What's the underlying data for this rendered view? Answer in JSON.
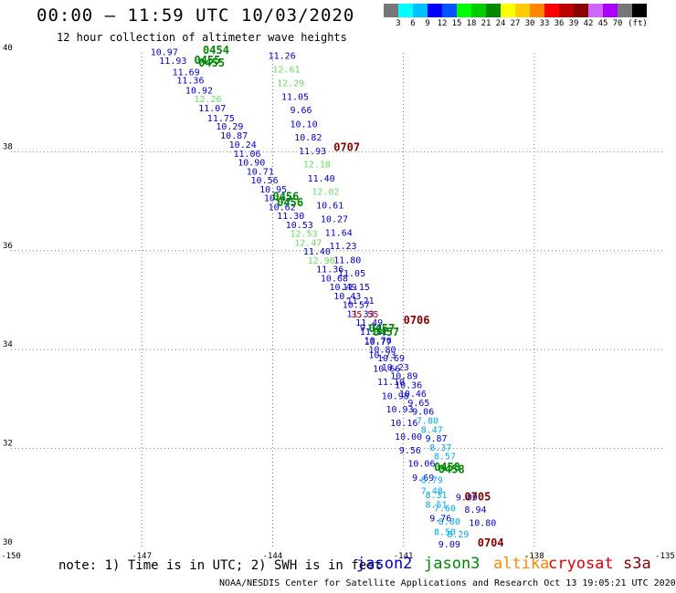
{
  "header": {
    "title": "00:00 – 11:59 UTC 10/03/2020",
    "subtitle": "12 hour collection of altimeter wave heights"
  },
  "legend": {
    "unit": "(ft)",
    "colors": [
      "#777777",
      "#00ffff",
      "#00bfff",
      "#0000ff",
      "#0055ff",
      "#00ff00",
      "#00cc00",
      "#008800",
      "#ffff00",
      "#ffcc00",
      "#ff8800",
      "#ff0000",
      "#bb0000",
      "#880000",
      "#cc66ff",
      "#aa00ff",
      "#777777",
      "#000000"
    ],
    "labels": [
      "3",
      "6",
      "9",
      "12",
      "15",
      "18",
      "21",
      "24",
      "27",
      "30",
      "33",
      "36",
      "39",
      "42",
      "45",
      "70"
    ]
  },
  "axes": {
    "x_ticks": [
      "-150",
      "-147",
      "-144",
      "-141",
      "-138",
      "-135"
    ],
    "y_ticks": [
      "40",
      "38",
      "36",
      "34",
      "32",
      "30"
    ],
    "lon_range": [
      -150,
      -135
    ],
    "lat_range": [
      30,
      40
    ],
    "grid": "dotted"
  },
  "footer": {
    "note": "note:  1) Time is in UTC;  2) SWH is in feet",
    "satellites": [
      {
        "name": "jason2",
        "color": "#0000cc"
      },
      {
        "name": "jason3",
        "color": "#008800"
      },
      {
        "name": "altika",
        "color": "#ff8800"
      },
      {
        "name": "cryosat",
        "color": "#dd0000"
      },
      {
        "name": "s3a",
        "color": "#880000"
      }
    ],
    "credit": "NOAA/NESDIS Center for Satellite Applications and Research     Oct 13 19:05:21 UTC 2020"
  },
  "track_a": {
    "label_time": [
      {
        "text": "0454",
        "lon": -145.6,
        "lat": 39.98
      },
      {
        "text": "0455",
        "lon": -145.8,
        "lat": 39.78
      },
      {
        "text": "0455",
        "lon": -145.7,
        "lat": 39.72
      },
      {
        "text": "0456",
        "lon": -144.0,
        "lat": 37.02
      },
      {
        "text": "0456",
        "lon": -143.9,
        "lat": 36.9
      },
      {
        "text": "0457",
        "lon": -141.8,
        "lat": 34.35
      },
      {
        "text": "0457",
        "lon": -141.7,
        "lat": 34.28
      },
      {
        "text": "0458",
        "lon": -140.3,
        "lat": 31.55
      },
      {
        "text": "0458",
        "lon": -140.2,
        "lat": 31.5
      }
    ],
    "values": [
      {
        "text": "10.97",
        "c": "#0000cc",
        "lon": -146.8,
        "lat": 39.95
      },
      {
        "text": "11.93",
        "c": "#0000cc",
        "lon": -146.6,
        "lat": 39.78
      },
      {
        "text": "11.69",
        "c": "#0000cc",
        "lon": -146.3,
        "lat": 39.55
      },
      {
        "text": "11.36",
        "c": "#0000cc",
        "lon": -146.2,
        "lat": 39.38
      },
      {
        "text": "10.92",
        "c": "#0000cc",
        "lon": -146.0,
        "lat": 39.18
      },
      {
        "text": "12.26",
        "c": "#66dd66",
        "lon": -145.8,
        "lat": 39.0
      },
      {
        "text": "11.07",
        "c": "#0000cc",
        "lon": -145.7,
        "lat": 38.82
      },
      {
        "text": "11.75",
        "c": "#0000cc",
        "lon": -145.5,
        "lat": 38.62
      },
      {
        "text": "10.29",
        "c": "#0000cc",
        "lon": -145.3,
        "lat": 38.45
      },
      {
        "text": "10.87",
        "c": "#0000cc",
        "lon": -145.2,
        "lat": 38.27
      },
      {
        "text": "10.24",
        "c": "#0000cc",
        "lon": -145.0,
        "lat": 38.08
      },
      {
        "text": "11.06",
        "c": "#0000cc",
        "lon": -144.9,
        "lat": 37.9
      },
      {
        "text": "10.90",
        "c": "#0000cc",
        "lon": -144.8,
        "lat": 37.72
      },
      {
        "text": "10.71",
        "c": "#0000cc",
        "lon": -144.6,
        "lat": 37.54
      },
      {
        "text": "10.56",
        "c": "#0000cc",
        "lon": -144.5,
        "lat": 37.36
      },
      {
        "text": "10.95",
        "c": "#0000cc",
        "lon": -144.3,
        "lat": 37.18
      },
      {
        "text": "10.42",
        "c": "#0000cc",
        "lon": -144.2,
        "lat": 37.0
      },
      {
        "text": "10.62",
        "c": "#0000cc",
        "lon": -144.1,
        "lat": 36.82
      },
      {
        "text": "11.30",
        "c": "#0000cc",
        "lon": -143.9,
        "lat": 36.64
      },
      {
        "text": "10.53",
        "c": "#0000cc",
        "lon": -143.7,
        "lat": 36.46
      },
      {
        "text": "12.53",
        "c": "#66dd66",
        "lon": -143.6,
        "lat": 36.28
      },
      {
        "text": "12.47",
        "c": "#66dd66",
        "lon": -143.5,
        "lat": 36.1
      },
      {
        "text": "11.40",
        "c": "#0000cc",
        "lon": -143.3,
        "lat": 35.92
      },
      {
        "text": "12.96",
        "c": "#66dd66",
        "lon": -143.2,
        "lat": 35.74
      },
      {
        "text": "11.36",
        "c": "#0000cc",
        "lon": -143.0,
        "lat": 35.56
      },
      {
        "text": "10.68",
        "c": "#0000cc",
        "lon": -142.9,
        "lat": 35.38
      },
      {
        "text": "10.49",
        "c": "#0000cc",
        "lon": -142.7,
        "lat": 35.2
      },
      {
        "text": "10.43",
        "c": "#0000cc",
        "lon": -142.6,
        "lat": 35.02
      },
      {
        "text": "10.57",
        "c": "#0000cc",
        "lon": -142.4,
        "lat": 34.84
      },
      {
        "text": "11.33",
        "c": "#0000cc",
        "lon": -142.3,
        "lat": 34.66
      },
      {
        "text": "11.49",
        "c": "#0000cc",
        "lon": -142.1,
        "lat": 34.48
      },
      {
        "text": "11.11",
        "c": "#0000cc",
        "lon": -142.0,
        "lat": 34.3
      },
      {
        "text": "10.76",
        "c": "#0000cc",
        "lon": -141.9,
        "lat": 34.12
      },
      {
        "text": "10.80",
        "c": "#0000cc",
        "lon": -141.8,
        "lat": 33.94
      },
      {
        "text": "10.69",
        "c": "#0000cc",
        "lon": -141.6,
        "lat": 33.76
      },
      {
        "text": "10.23",
        "c": "#0000cc",
        "lon": -141.5,
        "lat": 33.58
      },
      {
        "text": "10.89",
        "c": "#0000cc",
        "lon": -141.3,
        "lat": 33.4
      },
      {
        "text": "10.36",
        "c": "#0000cc",
        "lon": -141.2,
        "lat": 33.22
      },
      {
        "text": "10.46",
        "c": "#0000cc",
        "lon": -141.1,
        "lat": 33.04
      },
      {
        "text": "9.65",
        "c": "#0000cc",
        "lon": -140.9,
        "lat": 32.86
      },
      {
        "text": "9.06",
        "c": "#0000cc",
        "lon": -140.8,
        "lat": 32.68
      },
      {
        "text": "7.80",
        "c": "#00aaee",
        "lon": -140.7,
        "lat": 32.5
      },
      {
        "text": "8.47",
        "c": "#00aaee",
        "lon": -140.6,
        "lat": 32.32
      },
      {
        "text": "9.87",
        "c": "#0000cc",
        "lon": -140.5,
        "lat": 32.14
      },
      {
        "text": "8.37",
        "c": "#00aaee",
        "lon": -140.4,
        "lat": 31.96
      },
      {
        "text": "8.57",
        "c": "#00aaee",
        "lon": -140.3,
        "lat": 31.78
      }
    ]
  },
  "track_b": {
    "label_time": [
      {
        "text": "0707",
        "lon": -142.6,
        "lat": 38.02
      },
      {
        "text": "0706",
        "lon": -141.0,
        "lat": 34.52
      },
      {
        "text": "0705",
        "lon": -139.6,
        "lat": 30.95
      },
      {
        "text": "0704",
        "lon": -139.3,
        "lat": 30.02
      }
    ],
    "values": [
      {
        "text": "11.26",
        "c": "#0000cc",
        "lon": -144.1,
        "lat": 39.88
      },
      {
        "text": "12.61",
        "c": "#66dd66",
        "lon": -144.0,
        "lat": 39.6
      },
      {
        "text": "12.29",
        "c": "#66dd66",
        "lon": -143.9,
        "lat": 39.33
      },
      {
        "text": "11.05",
        "c": "#0000cc",
        "lon": -143.8,
        "lat": 39.05
      },
      {
        "text": "9.66",
        "c": "#0000cc",
        "lon": -143.6,
        "lat": 38.78
      },
      {
        "text": "10.10",
        "c": "#0000cc",
        "lon": -143.6,
        "lat": 38.5
      },
      {
        "text": "10.82",
        "c": "#0000cc",
        "lon": -143.5,
        "lat": 38.23
      },
      {
        "text": "11.93",
        "c": "#0000cc",
        "lon": -143.4,
        "lat": 37.95
      },
      {
        "text": "12.18",
        "c": "#66dd66",
        "lon": -143.3,
        "lat": 37.68
      },
      {
        "text": "11.40",
        "c": "#0000cc",
        "lon": -143.2,
        "lat": 37.4
      },
      {
        "text": "12.02",
        "c": "#66dd66",
        "lon": -143.1,
        "lat": 37.13
      },
      {
        "text": "10.61",
        "c": "#0000cc",
        "lon": -143.0,
        "lat": 36.85
      },
      {
        "text": "10.27",
        "c": "#0000cc",
        "lon": -142.9,
        "lat": 36.58
      },
      {
        "text": "11.64",
        "c": "#0000cc",
        "lon": -142.8,
        "lat": 36.3
      },
      {
        "text": "11.23",
        "c": "#0000cc",
        "lon": -142.7,
        "lat": 36.03
      },
      {
        "text": "11.80",
        "c": "#0000cc",
        "lon": -142.6,
        "lat": 35.75
      },
      {
        "text": "11.05",
        "c": "#0000cc",
        "lon": -142.5,
        "lat": 35.48
      },
      {
        "text": "11.15",
        "c": "#0000cc",
        "lon": -142.4,
        "lat": 35.2
      },
      {
        "text": "11.21",
        "c": "#0000cc",
        "lon": -142.3,
        "lat": 34.93
      },
      {
        "text": "35.55",
        "c": "#bb0000",
        "lon": -142.2,
        "lat": 34.65
      },
      {
        "text": "9.70",
        "c": "#0000cc",
        "lon": -142.0,
        "lat": 34.38
      },
      {
        "text": "10.77",
        "c": "#0000cc",
        "lon": -141.9,
        "lat": 34.1
      },
      {
        "text": "10.73",
        "c": "#0000cc",
        "lon": -141.8,
        "lat": 33.83
      },
      {
        "text": "10.66",
        "c": "#0000cc",
        "lon": -141.7,
        "lat": 33.55
      },
      {
        "text": "11.10",
        "c": "#0000cc",
        "lon": -141.6,
        "lat": 33.28
      },
      {
        "text": "10.98",
        "c": "#0000cc",
        "lon": -141.5,
        "lat": 33.0
      },
      {
        "text": "10.93",
        "c": "#0000cc",
        "lon": -141.4,
        "lat": 32.73
      },
      {
        "text": "10.16",
        "c": "#0000cc",
        "lon": -141.3,
        "lat": 32.45
      },
      {
        "text": "10.00",
        "c": "#0000cc",
        "lon": -141.2,
        "lat": 32.18
      },
      {
        "text": "9.56",
        "c": "#0000cc",
        "lon": -141.1,
        "lat": 31.9
      },
      {
        "text": "10.06",
        "c": "#0000cc",
        "lon": -140.9,
        "lat": 31.63
      },
      {
        "text": "9.69",
        "c": "#0000cc",
        "lon": -140.8,
        "lat": 31.35
      },
      {
        "text": "7.48",
        "c": "#00aaee",
        "lon": -140.6,
        "lat": 31.08
      },
      {
        "text": "8.51",
        "c": "#00aaee",
        "lon": -140.5,
        "lat": 30.8
      },
      {
        "text": "9.76",
        "c": "#0000cc",
        "lon": -140.4,
        "lat": 30.53
      },
      {
        "text": "8.50",
        "c": "#00aaee",
        "lon": -140.3,
        "lat": 30.25
      },
      {
        "text": "9.09",
        "c": "#0000cc",
        "lon": -140.2,
        "lat": 30.0
      },
      {
        "text": "8.79",
        "c": "#00aaee",
        "lon": -140.6,
        "lat": 31.3
      },
      {
        "text": "8.31",
        "c": "#00aaee",
        "lon": -140.5,
        "lat": 31.0
      },
      {
        "text": "7.60",
        "c": "#00aaee",
        "lon": -140.3,
        "lat": 30.73
      },
      {
        "text": "8.80",
        "c": "#00aaee",
        "lon": -140.2,
        "lat": 30.46
      },
      {
        "text": "8.29",
        "c": "#00aaee",
        "lon": -140.0,
        "lat": 30.2
      },
      {
        "text": "8.94",
        "c": "#0000cc",
        "lon": -139.6,
        "lat": 30.7
      },
      {
        "text": "10.80",
        "c": "#0000cc",
        "lon": -139.5,
        "lat": 30.43
      },
      {
        "text": "9.09",
        "c": "#0000cc",
        "lon": -139.8,
        "lat": 30.95
      }
    ]
  }
}
